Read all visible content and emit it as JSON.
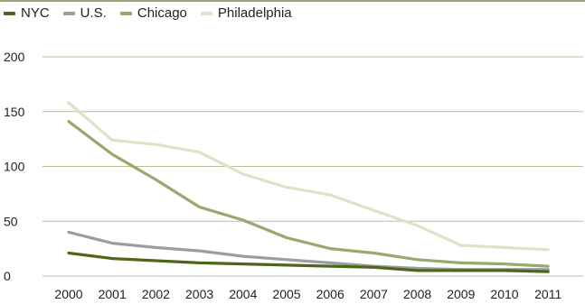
{
  "chart_data": {
    "type": "line",
    "x": [
      "2000",
      "2001",
      "2002",
      "2003",
      "2004",
      "2005",
      "2006",
      "2007",
      "2008",
      "2009",
      "2010",
      "2011"
    ],
    "ylim": [
      0,
      200
    ],
    "yticks": [
      "0",
      "50",
      "100",
      "150",
      "200"
    ],
    "grid": true,
    "legend_position": "top-left",
    "series": [
      {
        "name": "NYC",
        "color": "#4d6619",
        "values": [
          21,
          16,
          14,
          12,
          11,
          10,
          9,
          8,
          5,
          5,
          5,
          4
        ]
      },
      {
        "name": "U.S.",
        "color": "#9c9da3",
        "values": [
          40,
          30,
          26,
          23,
          18,
          15,
          12,
          9,
          7,
          6,
          6,
          6
        ]
      },
      {
        "name": "Chicago",
        "color": "#98a86e",
        "values": [
          141,
          111,
          88,
          63,
          51,
          35,
          25,
          21,
          15,
          12,
          11,
          9
        ]
      },
      {
        "name": "Philadelphia",
        "color": "#dde3c6",
        "values": [
          158,
          124,
          120,
          113,
          93,
          81,
          74,
          60,
          46,
          28,
          26,
          24
        ]
      }
    ]
  }
}
